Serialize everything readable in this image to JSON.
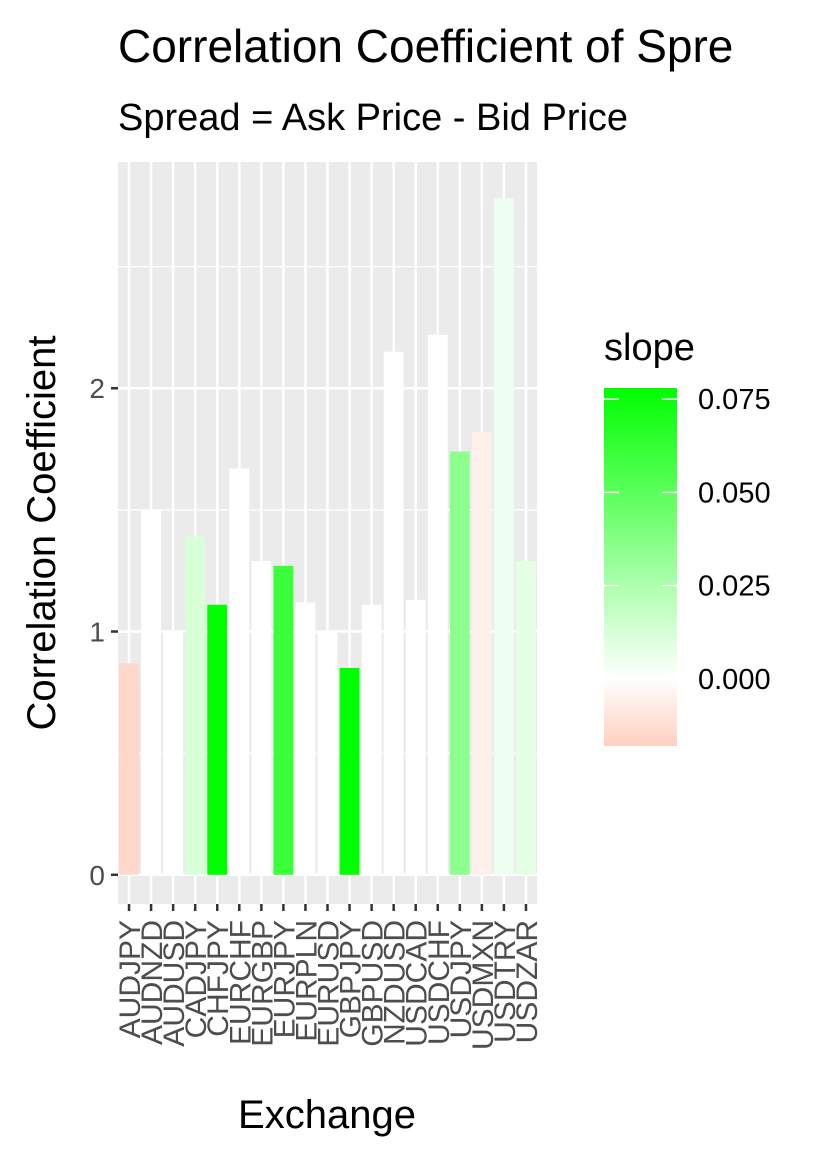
{
  "chart_data": {
    "type": "bar",
    "title": "Correlation Coefficient of Spre",
    "subtitle": "Spread = Ask Price - Bid Price",
    "xlabel": "Exchange",
    "ylabel": "Correlation Coefficient",
    "ylim": [
      -0.12,
      2.93
    ],
    "yticks": [
      0,
      1,
      2
    ],
    "grid": true,
    "legend_position": "right",
    "categories": [
      "AUDJPY",
      "AUDNZD",
      "AUDUSD",
      "CADJPY",
      "CHFJPY",
      "EURCHF",
      "EURGBP",
      "EURJPY",
      "EURPLN",
      "EURUSD",
      "GBPJPY",
      "GBPUSD",
      "NZDUSD",
      "USDCAD",
      "USDCHF",
      "USDJPY",
      "USDMXN",
      "USDTRY",
      "USDZAR"
    ],
    "values": [
      0.87,
      1.5,
      1.0,
      1.39,
      1.11,
      1.67,
      1.29,
      1.27,
      1.12,
      1.0,
      0.85,
      1.11,
      2.15,
      1.13,
      2.22,
      1.74,
      1.82,
      2.78,
      1.29
    ],
    "slope": [
      -0.015,
      0.0,
      0.0,
      0.012,
      0.078,
      0.0,
      0.0,
      0.06,
      0.0,
      0.0,
      0.078,
      0.0,
      0.0,
      0.0,
      0.0,
      0.035,
      -0.006,
      0.005,
      0.008
    ],
    "fill_legend": {
      "title": "slope",
      "breaks": [
        0.075,
        0.05,
        0.025,
        0.0
      ],
      "labels": [
        "0.075",
        "0.050",
        "0.025",
        "0.000"
      ],
      "range": [
        -0.018,
        0.078
      ],
      "low_color": "#ffd0c0",
      "mid_color": "#ffffff",
      "high_color": "#00ff00"
    }
  },
  "colors": {
    "panel_background": "#ebebeb",
    "grid_major": "#ffffff",
    "axis_text": "#4d4d4d"
  }
}
